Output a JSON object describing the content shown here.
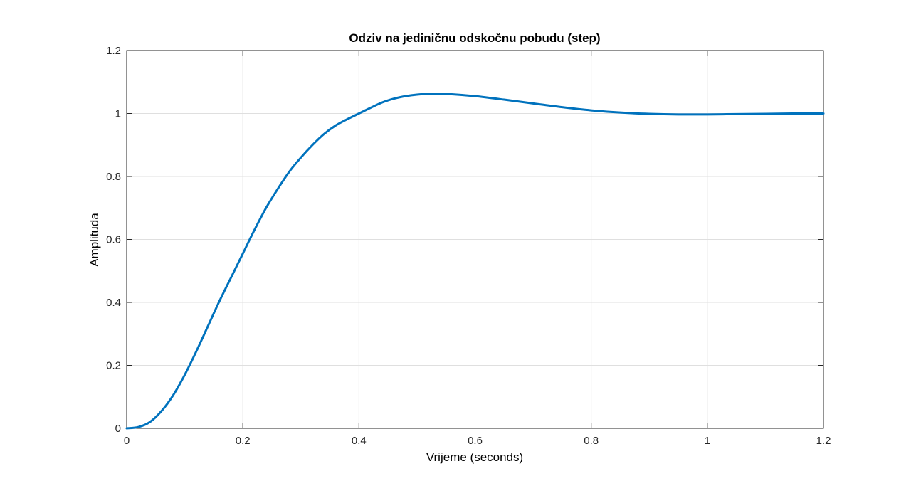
{
  "chart_data": {
    "type": "line",
    "title": "Odziv na jediničnu odskočnu pobudu (step)",
    "xlabel": "Vrijeme (seconds)",
    "ylabel": "Amplituda",
    "xlim": [
      0,
      1.2
    ],
    "ylim": [
      0,
      1.2
    ],
    "xticks": [
      0,
      0.2,
      0.4,
      0.6,
      0.8,
      1,
      1.2
    ],
    "yticks": [
      0,
      0.2,
      0.4,
      0.6,
      0.8,
      1,
      1.2
    ],
    "xtick_labels": [
      "0",
      "0.2",
      "0.4",
      "0.6",
      "0.8",
      "1",
      "1.2"
    ],
    "ytick_labels": [
      "0",
      "0.2",
      "0.4",
      "0.6",
      "0.8",
      "1",
      "1.2"
    ],
    "grid": true,
    "series": [
      {
        "color": "#0072bd",
        "x": [
          0,
          0.02,
          0.04,
          0.06,
          0.08,
          0.1,
          0.12,
          0.14,
          0.16,
          0.18,
          0.2,
          0.22,
          0.24,
          0.26,
          0.28,
          0.3,
          0.32,
          0.34,
          0.36,
          0.38,
          0.4,
          0.42,
          0.44,
          0.46,
          0.48,
          0.5,
          0.53,
          0.56,
          0.6,
          0.65,
          0.7,
          0.75,
          0.8,
          0.85,
          0.9,
          0.95,
          1.0,
          1.05,
          1.1,
          1.15,
          1.2
        ],
        "y": [
          0,
          0.004,
          0.02,
          0.055,
          0.105,
          0.17,
          0.245,
          0.325,
          0.405,
          0.48,
          0.555,
          0.63,
          0.7,
          0.76,
          0.815,
          0.86,
          0.9,
          0.935,
          0.962,
          0.982,
          1.0,
          1.018,
          1.035,
          1.047,
          1.055,
          1.06,
          1.063,
          1.061,
          1.055,
          1.044,
          1.032,
          1.02,
          1.01,
          1.003,
          0.999,
          0.997,
          0.997,
          0.998,
          0.999,
          1.0,
          1.0
        ]
      }
    ]
  }
}
